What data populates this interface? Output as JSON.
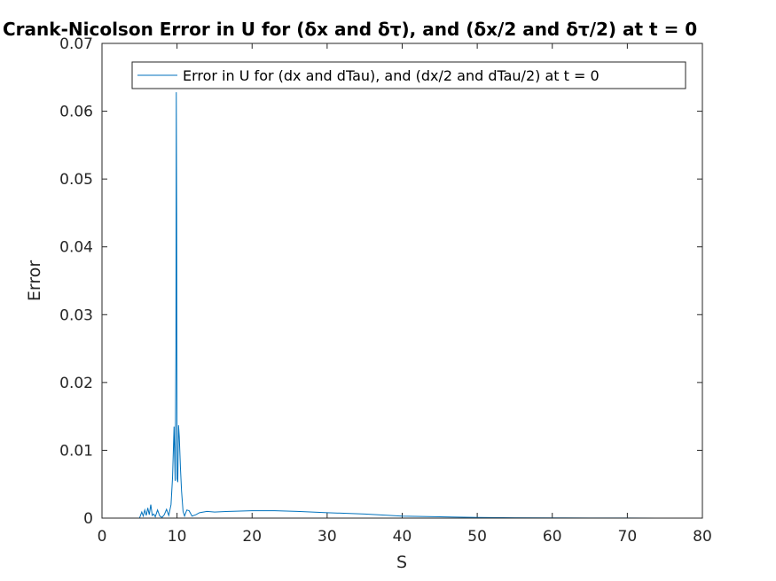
{
  "chart_data": {
    "type": "line",
    "title": "Crank-Nicolson Error in U for (δx and δτ), and (δx/2 and δτ/2) at t = 0",
    "xlabel": "S",
    "ylabel": "Error",
    "xlim": [
      0,
      80
    ],
    "ylim": [
      0,
      0.07
    ],
    "xticks": [
      0,
      10,
      20,
      30,
      40,
      50,
      60,
      70,
      80
    ],
    "yticks": [
      0,
      0.01,
      0.02,
      0.03,
      0.04,
      0.05,
      0.06,
      0.07
    ],
    "xtick_labels": [
      "0",
      "10",
      "20",
      "30",
      "40",
      "50",
      "60",
      "70",
      "80"
    ],
    "ytick_labels": [
      "0",
      "0.01",
      "0.02",
      "0.03",
      "0.04",
      "0.05",
      "0.06",
      "0.07"
    ],
    "grid": false,
    "legend_position": "top-right",
    "series": [
      {
        "name": "Error in U for (dx and dTau), and (dx/2 and dTau/2) at t = 0",
        "color": "#0072BD",
        "x": [
          0,
          4,
          5.0,
          5.3,
          5.5,
          5.7,
          5.9,
          6.1,
          6.3,
          6.5,
          6.7,
          6.9,
          7.1,
          7.4,
          7.7,
          8.0,
          8.3,
          8.6,
          8.9,
          9.2,
          9.4,
          9.6,
          9.75,
          9.85,
          9.9,
          9.95,
          10.0,
          10.1,
          10.2,
          10.3,
          10.45,
          10.6,
          10.8,
          11.0,
          11.3,
          11.6,
          12.0,
          12.5,
          13.0,
          14.0,
          15.0,
          17.0,
          20.0,
          23.0,
          26.0,
          30.0,
          35.0,
          40.0,
          45.0,
          50.0,
          55.0,
          60.0,
          65.0,
          70.0,
          74.0
        ],
        "y": [
          0,
          0,
          0,
          0.0009,
          0.0003,
          0.0012,
          0.0004,
          0.0015,
          0.0005,
          0.002,
          0.0004,
          0.0006,
          0.0002,
          0.0012,
          0.0003,
          0.0001,
          0.0005,
          0.0013,
          0.0004,
          0.002,
          0.006,
          0.0135,
          0.0055,
          0.025,
          0.0628,
          0.045,
          0.0058,
          0.0053,
          0.0137,
          0.012,
          0.0075,
          0.004,
          0.001,
          0.0003,
          0.0012,
          0.0011,
          0.0003,
          0.0005,
          0.0008,
          0.001,
          0.0009,
          0.001,
          0.0011,
          0.0011,
          0.001,
          0.0008,
          0.0006,
          0.0003,
          0.0002,
          0.0001,
          5e-05,
          3e-05,
          2e-05,
          1e-05,
          0
        ]
      }
    ]
  }
}
